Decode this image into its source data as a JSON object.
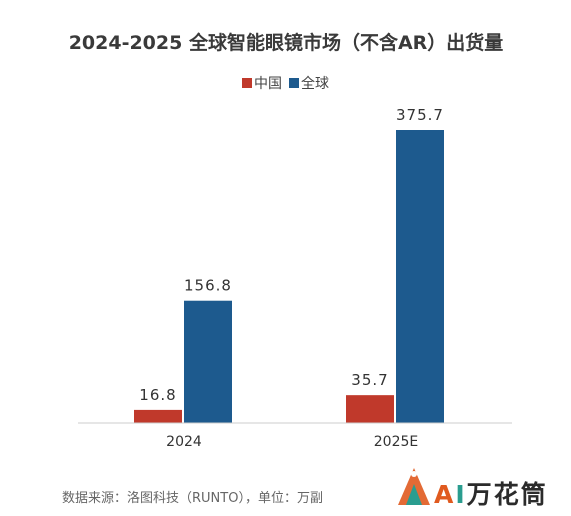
{
  "chart_data": {
    "type": "bar",
    "title": "2024-2025 全球智能眼镜市场（不含AR）出货量",
    "categories": [
      "2024",
      "2025E"
    ],
    "series": [
      {
        "name": "中国",
        "values": [
          16.8,
          35.7
        ],
        "value_labels": [
          "16.8",
          "35.7"
        ],
        "color": "#c0392b"
      },
      {
        "name": "全球",
        "values": [
          156.8,
          375.7
        ],
        "value_labels": [
          "156.8",
          "375.7"
        ],
        "color": "#1d5a8e"
      }
    ],
    "xlabel": "",
    "ylabel": "",
    "ylim": [
      0,
      375.7
    ],
    "grid": false,
    "legend_position": "top-center",
    "source": "数据来源：洛图科技（RUNTO），单位：万副"
  },
  "watermark": {
    "text": "AI万花筒",
    "colors": [
      "#e05a1f",
      "#2a9d8f"
    ]
  }
}
